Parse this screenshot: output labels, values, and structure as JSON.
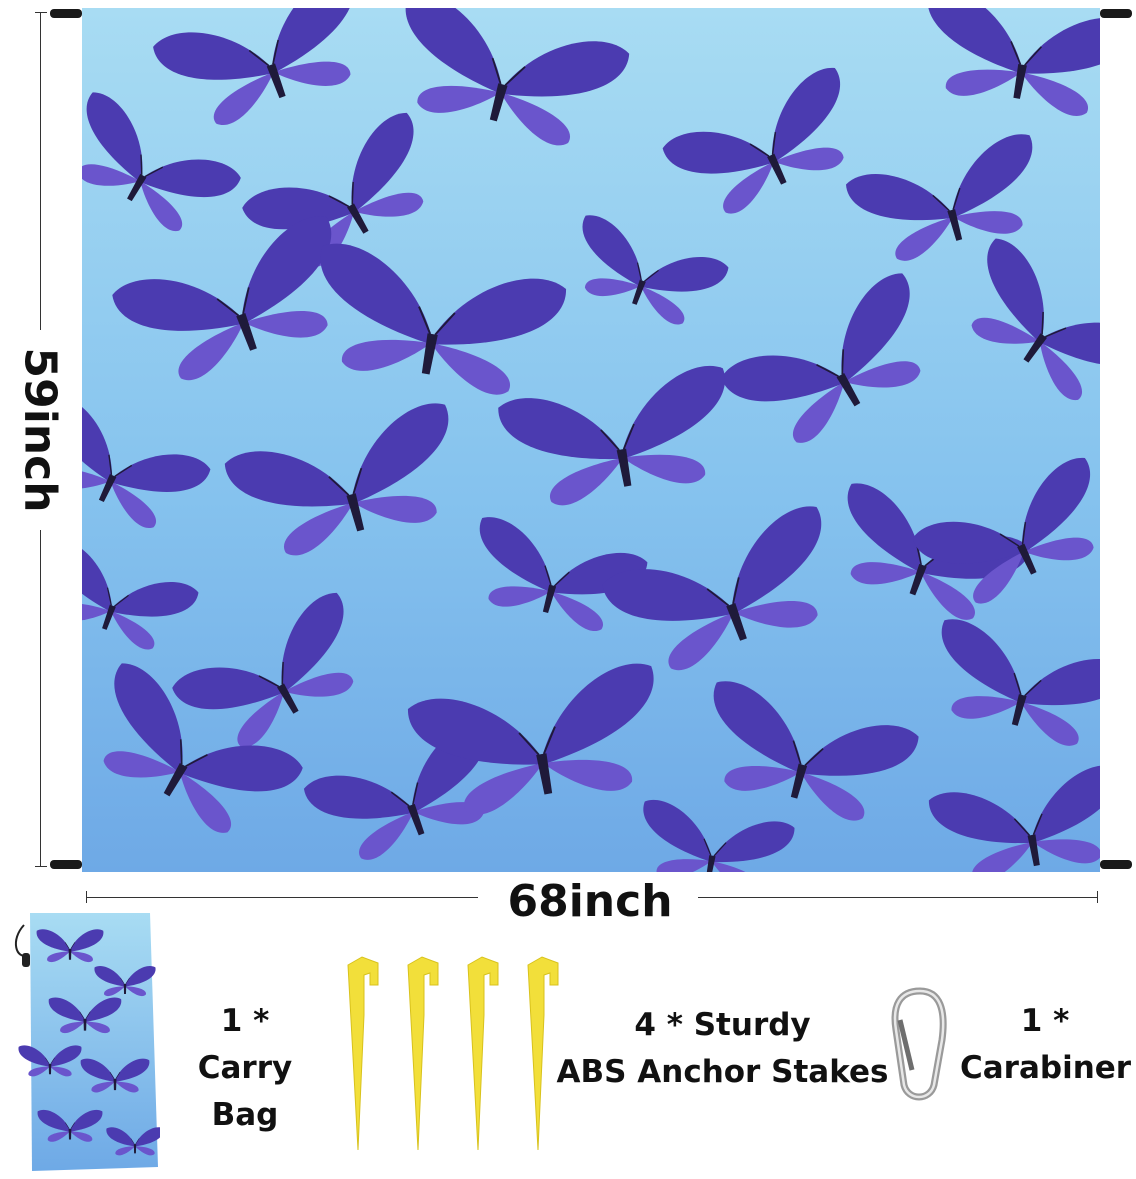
{
  "dimensions": {
    "height_label": "59inch",
    "width_label": "68inch"
  },
  "accessories": {
    "carry_bag": {
      "count": "1 *",
      "label": "Carry Bag"
    },
    "stakes": {
      "count": "4 * Sturdy",
      "label": "ABS Anchor Stakes"
    },
    "carabiner": {
      "count": "1 *",
      "label": "Carabiner"
    }
  },
  "colors": {
    "mat_top": "#a8dcf3",
    "mat_bottom": "#6ea9e6",
    "butterfly_dark": "#3a2f9a",
    "butterfly_light": "#7b62d6",
    "stake": "#f2df3a"
  },
  "icons": [
    "butterfly-icon",
    "yellow-stake-icon",
    "carabiner-icon",
    "carry-bag-icon"
  ]
}
